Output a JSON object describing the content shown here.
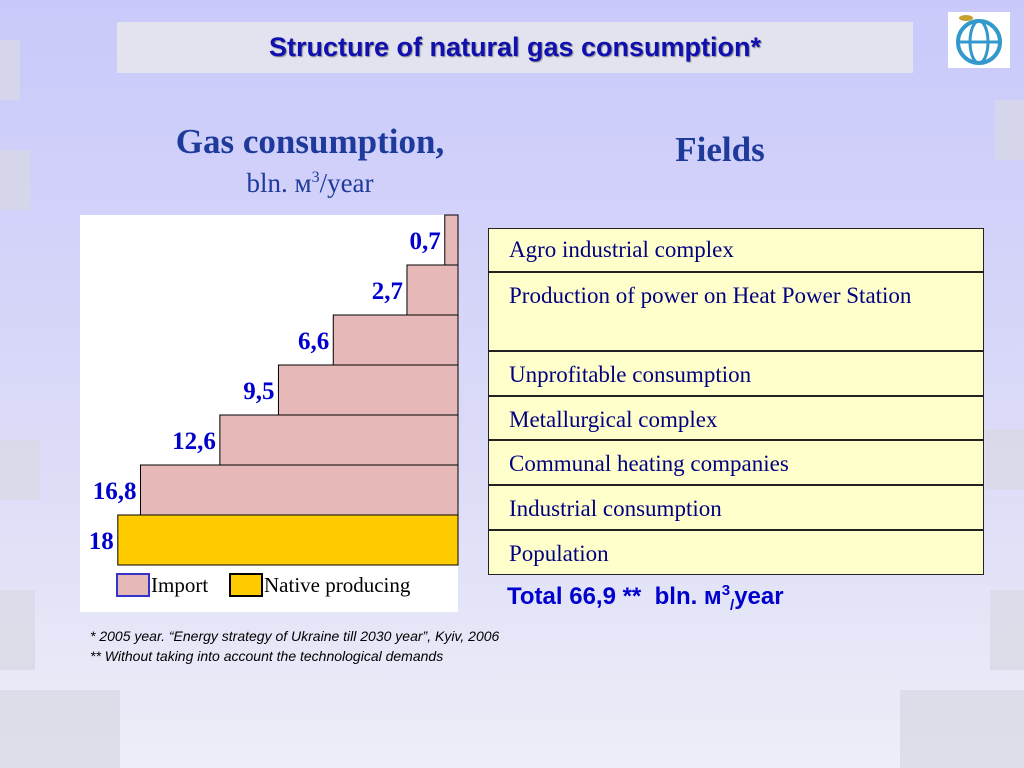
{
  "title": "Structure of natural gas consumption*",
  "chart_data": {
    "type": "bar",
    "orientation": "horizontal",
    "title": "Gas consumption,",
    "unit": {
      "text": "bln. м",
      "sup": "3",
      "rest": "/year"
    },
    "categories_title": "Fields",
    "categories": [
      "Agro industrial complex",
      "Production of power on Heat Power Station",
      "Unprofitable consumption",
      "Metallurgical complex",
      "Communal heating companies",
      "Industrial consumption",
      "Population"
    ],
    "series": [
      {
        "name": "Import",
        "color": "#e6b9b8",
        "values": [
          0.7,
          2.7,
          6.6,
          9.5,
          12.6,
          16.8,
          null
        ],
        "value_labels": [
          "0,7",
          "2,7",
          "6,6",
          "9,5",
          "12,6",
          "16,8",
          null
        ]
      },
      {
        "name": "Native producing",
        "color": "#ffcc00",
        "values": [
          null,
          null,
          null,
          null,
          null,
          null,
          18
        ],
        "value_labels": [
          null,
          null,
          null,
          null,
          null,
          null,
          "18"
        ]
      }
    ],
    "total": {
      "text": "Total 66,9 **  bln. м",
      "sup": "3",
      "sub": "/",
      "rest": "year"
    }
  },
  "footnotes": [
    "*  2005 year.  “Energy strategy of Ukraine till 2030 year”, Kyiv, 2006",
    "**  Without taking into account the technological demands"
  ]
}
